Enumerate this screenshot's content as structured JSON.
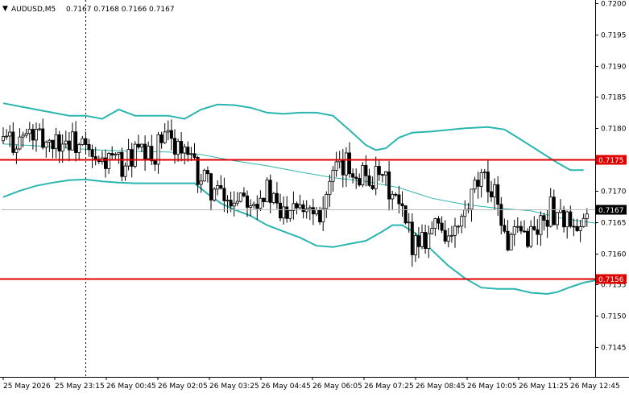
{
  "chart_data": {
    "type": "candlestick",
    "symbol_label": "AUDUSD,M5",
    "ohlc_label": "0.7167 0.7168 0.7166 0.7167",
    "ylim": [
      0.7141,
      0.72
    ],
    "y_ticks": [
      0.72,
      0.7195,
      0.719,
      0.7185,
      0.718,
      0.7175,
      0.717,
      0.7165,
      0.716,
      0.7155,
      0.715,
      0.7145
    ],
    "y_tick_labels": [
      "0.7200",
      "0.7195",
      "0.7190",
      "0.7185",
      "0.7180",
      "0.7175",
      "0.7170",
      "0.7165",
      "0.7160",
      "0.7155",
      "0.7150",
      "0.7145"
    ],
    "x_labels": [
      "25 May 2026",
      "25 May 23:15",
      "26 May 00:45",
      "26 May 02:05",
      "26 May 03:25",
      "26 May 04:45",
      "26 May 06:05",
      "26 May 07:25",
      "26 May 08:45",
      "26 May 10:05",
      "26 May 11:25",
      "26 May 12:45"
    ],
    "bar_count": 180,
    "vline_bar_index": 25,
    "hlines": [
      {
        "value": 0.7175,
        "label": "0.7175",
        "color": "#e00000"
      },
      {
        "value": 0.7156,
        "label": "0.7156",
        "color": "#e00000"
      }
    ],
    "current_price": {
      "value": 0.7167,
      "label": "0.7167"
    },
    "colors": {
      "candle": "#000000",
      "band": "#2bb5b0",
      "middle": "#2bb5b0",
      "hline": "#e00000",
      "grid": "#c8c8c8",
      "vline": "#000000"
    },
    "upper_band": [
      [
        0,
        0.7184
      ],
      [
        5,
        0.71835
      ],
      [
        10,
        0.7183
      ],
      [
        20,
        0.7182
      ],
      [
        25,
        0.7182
      ],
      [
        30,
        0.71815
      ],
      [
        35,
        0.7183
      ],
      [
        40,
        0.7182
      ],
      [
        50,
        0.7182
      ],
      [
        55,
        0.71815
      ],
      [
        60,
        0.7183
      ],
      [
        65,
        0.71838
      ],
      [
        70,
        0.71837
      ],
      [
        75,
        0.71833
      ],
      [
        80,
        0.71825
      ],
      [
        85,
        0.71823
      ],
      [
        90,
        0.71825
      ],
      [
        95,
        0.71825
      ],
      [
        100,
        0.7182
      ],
      [
        105,
        0.71797
      ],
      [
        110,
        0.71773
      ],
      [
        113,
        0.71765
      ],
      [
        116,
        0.71768
      ],
      [
        120,
        0.71785
      ],
      [
        124,
        0.71793
      ],
      [
        130,
        0.71795
      ],
      [
        140,
        0.718
      ],
      [
        147,
        0.71802
      ],
      [
        152,
        0.71798
      ],
      [
        156,
        0.71785
      ],
      [
        162,
        0.71765
      ],
      [
        168,
        0.71745
      ],
      [
        172,
        0.71733
      ],
      [
        176,
        0.71733
      ]
    ],
    "lower_band": [
      [
        0,
        0.7169
      ],
      [
        5,
        0.717
      ],
      [
        10,
        0.71708
      ],
      [
        15,
        0.71713
      ],
      [
        20,
        0.71717
      ],
      [
        25,
        0.71718
      ],
      [
        30,
        0.71715
      ],
      [
        35,
        0.71713
      ],
      [
        40,
        0.71712
      ],
      [
        50,
        0.71712
      ],
      [
        58,
        0.71712
      ],
      [
        62,
        0.71695
      ],
      [
        66,
        0.7168
      ],
      [
        70,
        0.7167
      ],
      [
        75,
        0.7166
      ],
      [
        80,
        0.71645
      ],
      [
        85,
        0.71635
      ],
      [
        90,
        0.71625
      ],
      [
        95,
        0.71612
      ],
      [
        100,
        0.7161
      ],
      [
        105,
        0.71615
      ],
      [
        110,
        0.7162
      ],
      [
        115,
        0.71635
      ],
      [
        118,
        0.71645
      ],
      [
        121,
        0.71645
      ],
      [
        125,
        0.71632
      ],
      [
        130,
        0.71605
      ],
      [
        135,
        0.7158
      ],
      [
        140,
        0.7156
      ],
      [
        145,
        0.71545
      ],
      [
        150,
        0.71543
      ],
      [
        155,
        0.71543
      ],
      [
        160,
        0.71537
      ],
      [
        165,
        0.71535
      ],
      [
        168,
        0.71538
      ],
      [
        172,
        0.71546
      ],
      [
        176,
        0.71553
      ],
      [
        180,
        0.71557
      ]
    ],
    "middle_band": [
      [
        0,
        0.71775
      ],
      [
        10,
        0.71772
      ],
      [
        20,
        0.71768
      ],
      [
        30,
        0.71765
      ],
      [
        40,
        0.71763
      ],
      [
        50,
        0.71762
      ],
      [
        60,
        0.71758
      ],
      [
        70,
        0.71748
      ],
      [
        80,
        0.7174
      ],
      [
        90,
        0.7173
      ],
      [
        100,
        0.71721
      ],
      [
        110,
        0.71715
      ],
      [
        120,
        0.71705
      ],
      [
        130,
        0.71688
      ],
      [
        140,
        0.71678
      ],
      [
        150,
        0.71672
      ],
      [
        160,
        0.71668
      ],
      [
        170,
        0.71655
      ],
      [
        180,
        0.71648
      ]
    ],
    "candle_path": [
      [
        0,
        0.7178
      ],
      [
        4,
        0.7178
      ],
      [
        8,
        0.7179
      ],
      [
        12,
        0.7178
      ],
      [
        16,
        0.7178
      ],
      [
        20,
        0.7178
      ],
      [
        24,
        0.7177
      ],
      [
        28,
        0.7174
      ],
      [
        32,
        0.7175
      ],
      [
        36,
        0.7174
      ],
      [
        40,
        0.7176
      ],
      [
        45,
        0.7175
      ],
      [
        48,
        0.7178
      ],
      [
        52,
        0.7178
      ],
      [
        56,
        0.7175
      ],
      [
        60,
        0.7172
      ],
      [
        64,
        0.717
      ],
      [
        68,
        0.7168
      ],
      [
        72,
        0.717
      ],
      [
        76,
        0.7169
      ],
      [
        80,
        0.717
      ],
      [
        84,
        0.7166
      ],
      [
        88,
        0.7169
      ],
      [
        92,
        0.7168
      ],
      [
        96,
        0.7167
      ],
      [
        100,
        0.7172
      ],
      [
        104,
        0.7174
      ],
      [
        108,
        0.7173
      ],
      [
        112,
        0.7172
      ],
      [
        116,
        0.7171
      ],
      [
        120,
        0.7167
      ],
      [
        124,
        0.7162
      ],
      [
        128,
        0.7163
      ],
      [
        132,
        0.7165
      ],
      [
        136,
        0.7162
      ],
      [
        140,
        0.7166
      ],
      [
        144,
        0.7171
      ],
      [
        148,
        0.7171
      ],
      [
        150,
        0.7169
      ],
      [
        152,
        0.7162
      ],
      [
        154,
        0.7162
      ],
      [
        158,
        0.7163
      ],
      [
        162,
        0.7164
      ],
      [
        166,
        0.7167
      ],
      [
        170,
        0.7166
      ],
      [
        174,
        0.7162
      ],
      [
        178,
        0.7167
      ],
      [
        180,
        0.7167
      ]
    ]
  }
}
